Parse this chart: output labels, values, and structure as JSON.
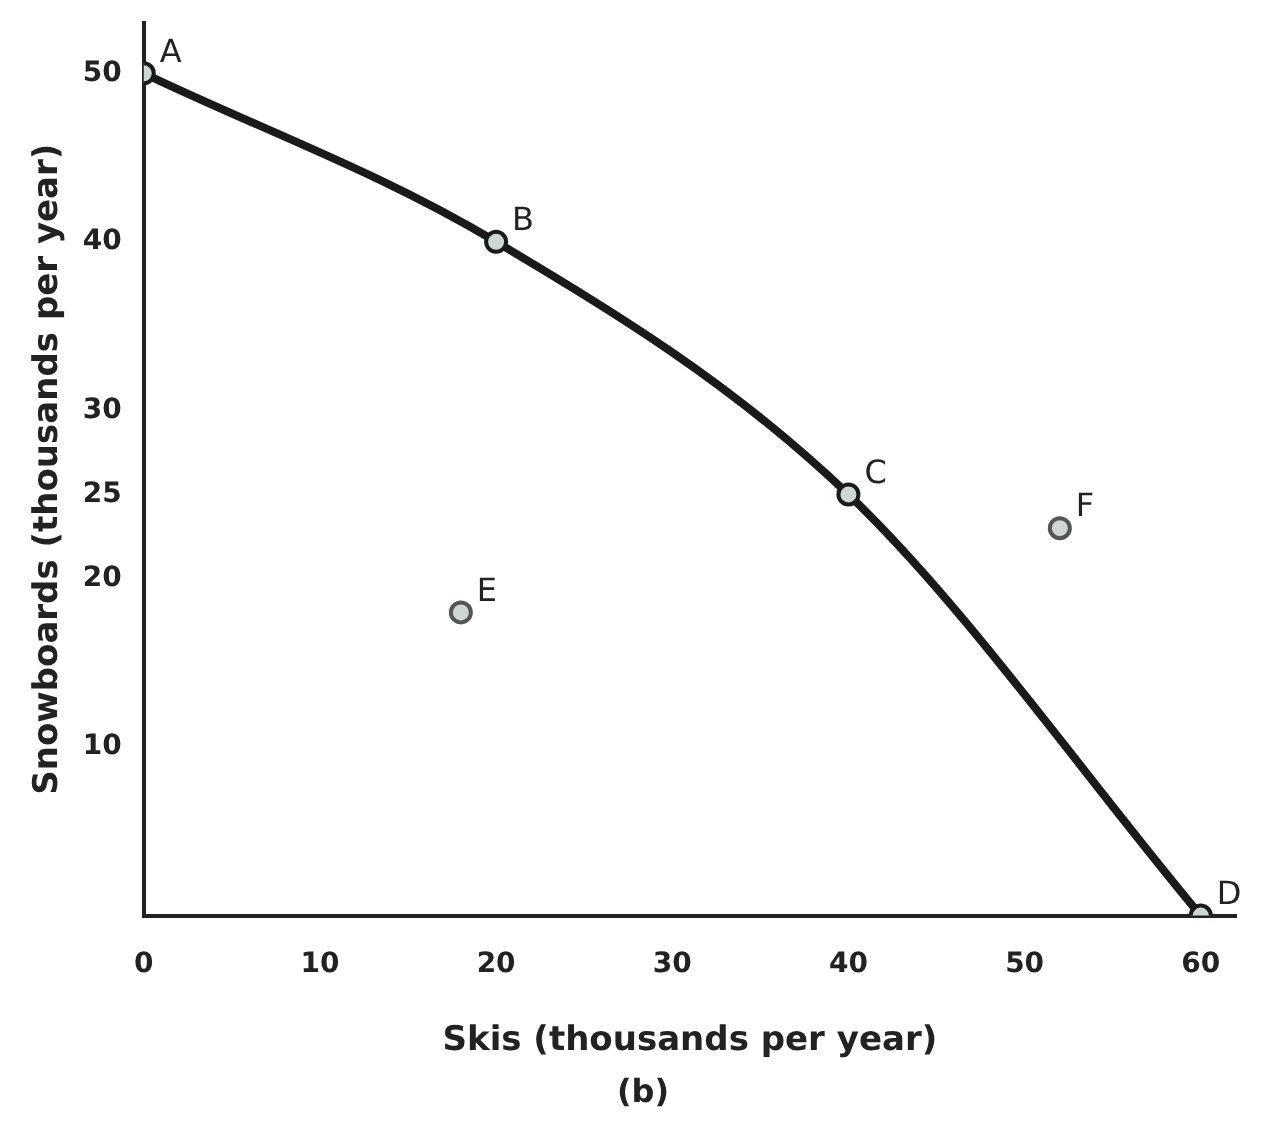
{
  "chart_data": {
    "type": "line",
    "xlabel": "Skis (thousands per year)",
    "ylabel": "Snowboards (thousands per year)",
    "xlim": [
      0,
      62
    ],
    "xticks": [
      0,
      10,
      20,
      30,
      40,
      50,
      60
    ],
    "ylim": [
      0,
      53
    ],
    "yticks": [
      10,
      20,
      25,
      30,
      40,
      50
    ],
    "series": [
      {
        "color": "#1a1a1a",
        "x": [
          0,
          20,
          40,
          60
        ],
        "values": [
          50,
          40,
          25,
          0
        ],
        "marker": "circle"
      },
      {
        "type": "scatter",
        "color": "#555555",
        "x": [
          18,
          52
        ],
        "values": [
          18,
          23
        ],
        "marker": "circle"
      }
    ],
    "annotations": [
      {
        "text": "A",
        "x": 0,
        "y": 50
      },
      {
        "text": "B",
        "x": 20,
        "y": 40
      },
      {
        "text": "C",
        "x": 40,
        "y": 25
      },
      {
        "text": "D",
        "x": 60,
        "y": 0
      },
      {
        "text": "E",
        "x": 18,
        "y": 18
      },
      {
        "text": "F",
        "x": 52,
        "y": 23
      },
      "(b)"
    ],
    "grid": false,
    "legend": false
  }
}
